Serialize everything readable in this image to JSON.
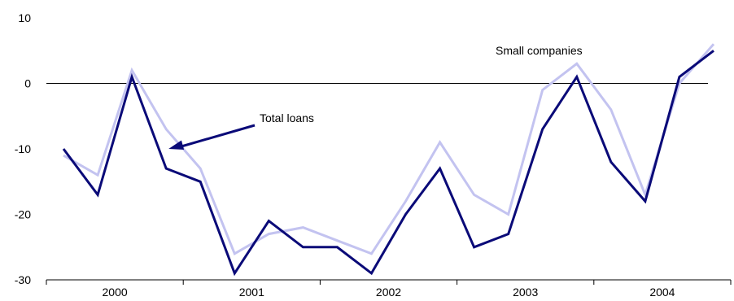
{
  "chart_data": {
    "type": "line",
    "title": "",
    "xlabel": "",
    "ylabel": "",
    "ylim": [
      -30,
      10
    ],
    "yticks": [
      10,
      0,
      -10,
      -20,
      -30
    ],
    "year_labels": [
      "2000",
      "2001",
      "2002",
      "2003",
      "2004"
    ],
    "x_quarters": [
      "2000 Q1",
      "2000 Q2",
      "2000 Q3",
      "2000 Q4",
      "2001 Q1",
      "2001 Q2",
      "2001 Q3",
      "2001 Q4",
      "2002 Q1",
      "2002 Q2",
      "2002 Q3",
      "2002 Q4",
      "2003 Q1",
      "2003 Q2",
      "2003 Q3",
      "2003 Q4",
      "2004 Q1",
      "2004 Q2",
      "2004 Q3",
      "2004 Q4"
    ],
    "grid": false,
    "series": [
      {
        "name": "Total loans",
        "color": "#0a0a78",
        "values": [
          -10,
          -17,
          1,
          -13,
          -15,
          -29,
          -21,
          -25,
          -25,
          -29,
          -20,
          -13,
          -25,
          -23,
          -7,
          1,
          -12,
          -18,
          1,
          5
        ]
      },
      {
        "name": "Small companies",
        "color": "#c3c3f0",
        "values": [
          -11,
          -14,
          2,
          -7,
          -13,
          -26,
          -23,
          -22,
          -24,
          -26,
          -18,
          -9,
          -17,
          -20,
          -1,
          3,
          -4,
          -17,
          0,
          6
        ]
      }
    ],
    "annotations": {
      "total_loans": "Total loans",
      "small_companies": "Small companies"
    }
  }
}
